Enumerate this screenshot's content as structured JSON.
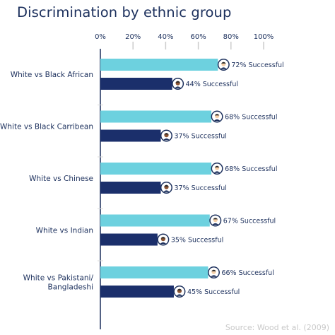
{
  "chart_data": {
    "type": "bar",
    "orientation": "horizontal",
    "title": "Discrimination by ethnic group",
    "source": "Source: Wood et al. (2009)",
    "xlim": [
      0,
      100
    ],
    "x_ticks": [
      0,
      20,
      40,
      60,
      80,
      100
    ],
    "x_tick_labels": [
      "0%",
      "20%",
      "40%",
      "60%",
      "80%",
      "100%"
    ],
    "categories": [
      [
        "White vs Black African"
      ],
      [
        "White vs Black Carribean"
      ],
      [
        "White vs Chinese"
      ],
      [
        "White vs Indian"
      ],
      [
        "White vs Pakistani/",
        "Bangladeshi"
      ]
    ],
    "series": [
      {
        "values": [
          72,
          68,
          68,
          67,
          66
        ],
        "color": "#6dd1df",
        "icon": "white-person-avatar-icon"
      },
      {
        "values": [
          44,
          37,
          37,
          35,
          45
        ],
        "color": "#1b2f6b",
        "icon": "ethnic-minority-person-avatar-icon"
      }
    ],
    "data_labels": [
      [
        "72% Successful",
        "68% Successful",
        "68% Successful",
        "67% Successful",
        "66% Successful"
      ],
      [
        "44% Successful",
        "37% Successful",
        "37% Successful",
        "35% Successful",
        "45% Successful"
      ]
    ],
    "grid": false,
    "legend": "none",
    "colors": {
      "text": "#1b2f5c",
      "axis_line": "#1b2f5c",
      "tick_mark": "#cccccc",
      "divider": "#d9d9d9",
      "source": "#c9c9c9"
    }
  }
}
